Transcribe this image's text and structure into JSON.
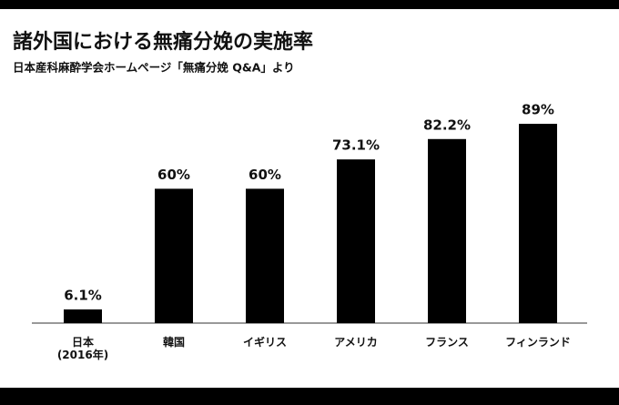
{
  "chart_data": {
    "type": "bar",
    "title": "諸外国における無痛分娩の実施率",
    "subtitle": "日本産科麻酔学会ホームページ「無痛分娩 Q&A」より",
    "categories": [
      "日本\n(2016年)",
      "韓国",
      "イギリス",
      "アメリカ",
      "フランス",
      "フィンランド"
    ],
    "values": [
      6.1,
      60,
      60,
      73.1,
      82.2,
      89
    ],
    "value_labels": [
      "6.1%",
      "60%",
      "60%",
      "73.1%",
      "82.2%",
      "89%"
    ],
    "color": "#000000"
  }
}
